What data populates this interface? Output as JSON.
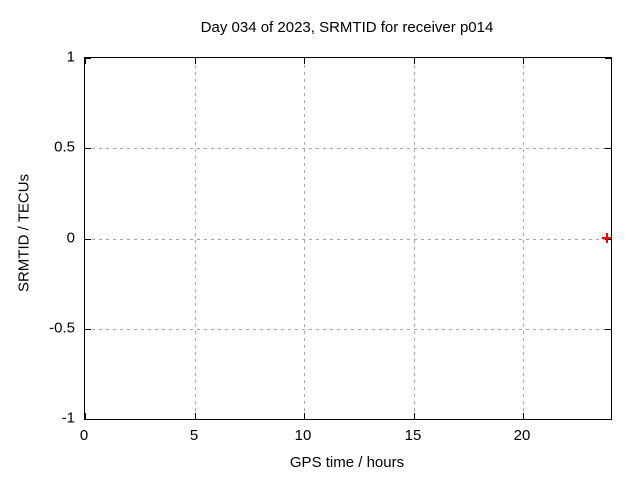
{
  "chart_data": {
    "type": "scatter",
    "title": "Day 034 of 2023, SRMTID for receiver p014",
    "xlabel": "GPS time / hours",
    "ylabel": "SRMTID / TECUs",
    "xlim": [
      0,
      24
    ],
    "ylim": [
      -1,
      1
    ],
    "xticks": [
      0,
      5,
      10,
      15,
      20
    ],
    "yticks": [
      1,
      0.5,
      0,
      -0.5,
      -1
    ],
    "grid": true,
    "legend": "none",
    "colors": {
      "marker": "#ff0000",
      "grid": "#a6a6a6",
      "axis": "#000000",
      "background": "#ffffff",
      "text": "#000000"
    },
    "series": [
      {
        "name": "SRMTID",
        "marker": "plus",
        "color": "#ff0000",
        "points": [
          {
            "x": 23.86,
            "y": 0.0
          }
        ]
      }
    ]
  }
}
